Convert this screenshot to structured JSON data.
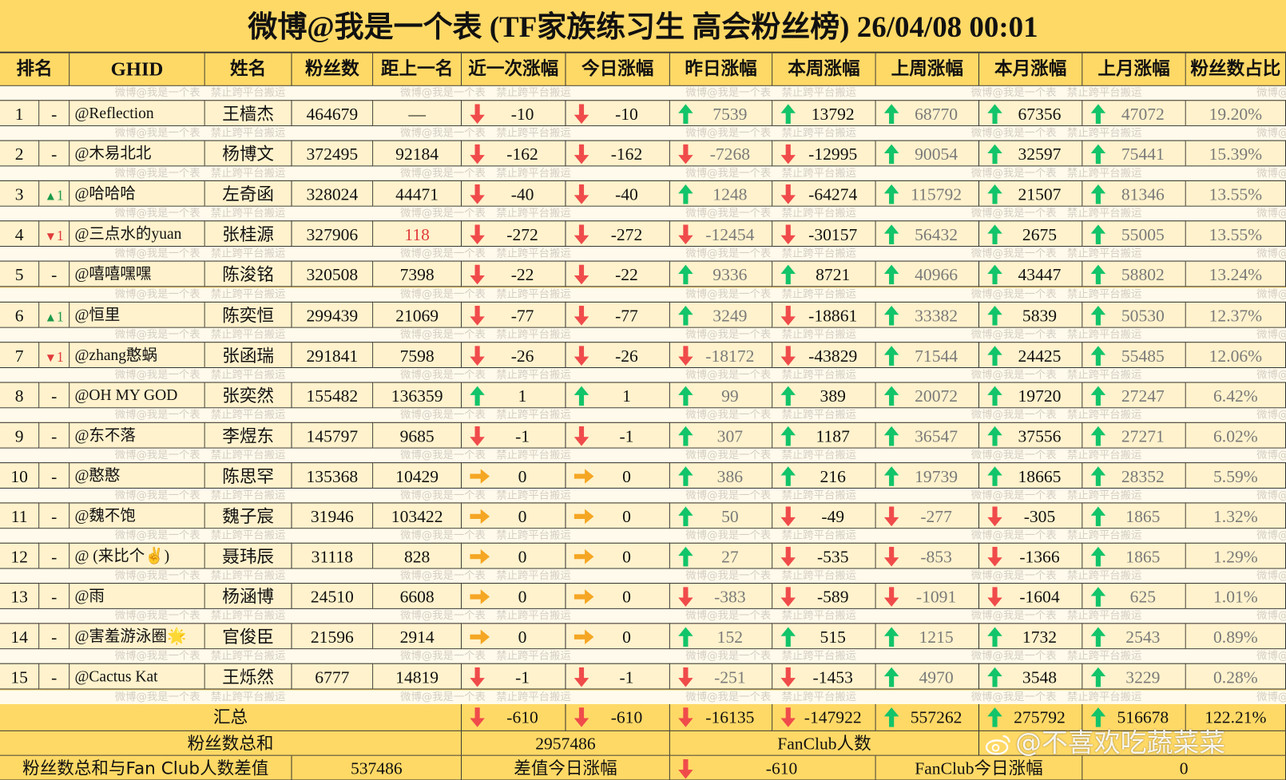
{
  "title": "微博@我是一个表 (TF家族练习生 高会粉丝榜)  26/04/08 00:01",
  "columns": [
    "排名",
    "GHID",
    "姓名",
    "粉丝数",
    "距上一名",
    "近一次涨幅",
    "今日涨幅",
    "昨日涨幅",
    "本周涨幅",
    "上周涨幅",
    "本月涨幅",
    "上月涨幅",
    "粉丝数占比"
  ],
  "strip_watermark": "微博@我是一个表　禁止跨平台搬运",
  "colors": {
    "header": "#FFD966",
    "cell": "#FFF2CC",
    "up": "#12C46A",
    "down": "#F04B4B",
    "flat": "#F5A623"
  },
  "rows": [
    {
      "rank": "1",
      "change": "-",
      "change_dir": "",
      "ghid": "@Reflection",
      "name": "王樯杰",
      "fans": "464679",
      "gap": "—",
      "recent": "-10",
      "today": "-10",
      "yesterday": "7539",
      "this_week": "13792",
      "last_week": "68770",
      "this_month": "67356",
      "last_month": "47072",
      "share": "19.20%"
    },
    {
      "rank": "2",
      "change": "-",
      "change_dir": "",
      "ghid": "@木易北北",
      "name": "杨博文",
      "fans": "372495",
      "gap": "92184",
      "recent": "-162",
      "today": "-162",
      "yesterday": "-7268",
      "this_week": "-12995",
      "last_week": "90054",
      "this_month": "32597",
      "last_month": "75441",
      "share": "15.39%"
    },
    {
      "rank": "3",
      "change": "1",
      "change_dir": "up",
      "ghid": "@哈哈哈",
      "name": "左奇函",
      "fans": "328024",
      "gap": "44471",
      "recent": "-40",
      "today": "-40",
      "yesterday": "1248",
      "this_week": "-64274",
      "last_week": "115792",
      "this_month": "21507",
      "last_month": "81346",
      "share": "13.55%"
    },
    {
      "rank": "4",
      "change": "1",
      "change_dir": "down",
      "ghid": "@三点水的yuan",
      "name": "张桂源",
      "fans": "327906",
      "gap": "118",
      "gap_red": true,
      "recent": "-272",
      "today": "-272",
      "yesterday": "-12454",
      "this_week": "-30157",
      "last_week": "56432",
      "this_month": "2675",
      "last_month": "55005",
      "share": "13.55%"
    },
    {
      "rank": "5",
      "change": "-",
      "change_dir": "",
      "ghid": "@嘻嘻嘿嘿",
      "name": "陈浚铭",
      "fans": "320508",
      "gap": "7398",
      "recent": "-22",
      "today": "-22",
      "yesterday": "9336",
      "this_week": "8721",
      "last_week": "40966",
      "this_month": "43447",
      "last_month": "58802",
      "share": "13.24%"
    },
    {
      "rank": "6",
      "change": "1",
      "change_dir": "up",
      "ghid": "@恒里",
      "name": "陈奕恒",
      "fans": "299439",
      "gap": "21069",
      "recent": "-77",
      "today": "-77",
      "yesterday": "3249",
      "this_week": "-18861",
      "last_week": "33382",
      "this_month": "5839",
      "last_month": "50530",
      "share": "12.37%"
    },
    {
      "rank": "7",
      "change": "1",
      "change_dir": "down",
      "ghid": "@zhang憨蜗",
      "name": "张函瑞",
      "fans": "291841",
      "gap": "7598",
      "recent": "-26",
      "today": "-26",
      "yesterday": "-18172",
      "this_week": "-43829",
      "last_week": "71544",
      "this_month": "24425",
      "last_month": "55485",
      "share": "12.06%"
    },
    {
      "rank": "8",
      "change": "-",
      "change_dir": "",
      "ghid": "@OH MY GOD",
      "name": "张奕然",
      "fans": "155482",
      "gap": "136359",
      "recent": "1",
      "today": "1",
      "yesterday": "99",
      "this_week": "389",
      "last_week": "20072",
      "this_month": "19720",
      "last_month": "27247",
      "share": "6.42%"
    },
    {
      "rank": "9",
      "change": "-",
      "change_dir": "",
      "ghid": "@东不落",
      "name": "李煜东",
      "fans": "145797",
      "gap": "9685",
      "recent": "-1",
      "today": "-1",
      "yesterday": "307",
      "this_week": "1187",
      "last_week": "36547",
      "this_month": "37556",
      "last_month": "27271",
      "share": "6.02%"
    },
    {
      "rank": "10",
      "change": "-",
      "change_dir": "",
      "ghid": "@憨憨",
      "name": "陈思罕",
      "fans": "135368",
      "gap": "10429",
      "recent": "0",
      "today": "0",
      "yesterday": "386",
      "this_week": "216",
      "last_week": "19739",
      "this_month": "18665",
      "last_month": "28352",
      "share": "5.59%"
    },
    {
      "rank": "11",
      "change": "-",
      "change_dir": "",
      "ghid": "@魏不饱",
      "name": "魏子宸",
      "fans": "31946",
      "gap": "103422",
      "recent": "0",
      "today": "0",
      "yesterday": "50",
      "this_week": "-49",
      "last_week": "-277",
      "this_month": "-305",
      "last_month": "1865",
      "share": "1.32%"
    },
    {
      "rank": "12",
      "change": "-",
      "change_dir": "",
      "ghid": "@ (来比个✌️)",
      "name": "聂玮辰",
      "fans": "31118",
      "gap": "828",
      "recent": "0",
      "today": "0",
      "yesterday": "27",
      "this_week": "-535",
      "last_week": "-853",
      "this_month": "-1366",
      "last_month": "1865",
      "share": "1.29%"
    },
    {
      "rank": "13",
      "change": "-",
      "change_dir": "",
      "ghid": "@雨",
      "name": "杨涵博",
      "fans": "24510",
      "gap": "6608",
      "recent": "0",
      "today": "0",
      "yesterday": "-383",
      "this_week": "-589",
      "last_week": "-1091",
      "this_month": "-1604",
      "last_month": "625",
      "share": "1.01%"
    },
    {
      "rank": "14",
      "change": "-",
      "change_dir": "",
      "ghid": "@害羞游泳圈🌟",
      "name": "官俊臣",
      "fans": "21596",
      "gap": "2914",
      "recent": "0",
      "today": "0",
      "yesterday": "152",
      "this_week": "515",
      "last_week": "1215",
      "this_month": "1732",
      "last_month": "2543",
      "share": "0.89%"
    },
    {
      "rank": "15",
      "change": "-",
      "change_dir": "",
      "ghid": "@Cactus Kat",
      "name": "王烁然",
      "fans": "6777",
      "gap": "14819",
      "recent": "-1",
      "today": "-1",
      "yesterday": "-251",
      "this_week": "-1453",
      "last_week": "4970",
      "this_month": "3548",
      "last_month": "3229",
      "share": "0.28%"
    }
  ],
  "summary": {
    "label": "汇总",
    "recent": "-610",
    "today": "-610",
    "yesterday": "-16135",
    "this_week": "-147922",
    "last_week": "557262",
    "this_month": "275792",
    "last_month": "516678",
    "share": "122.21%",
    "total_label": "粉丝数总和",
    "total_value": "2957486",
    "fanclub_label": "FanClub人数",
    "diff_label": "粉丝数总和与Fan Club人数差值",
    "diff_value": "537486",
    "diff_change_label": "差值今日涨幅",
    "diff_change_value": "-610",
    "fanclub_change_label": "FanClub今日涨幅",
    "fanclub_change_value": "0"
  },
  "overlay_watermark": "@不喜欢吃蔬菜菜"
}
